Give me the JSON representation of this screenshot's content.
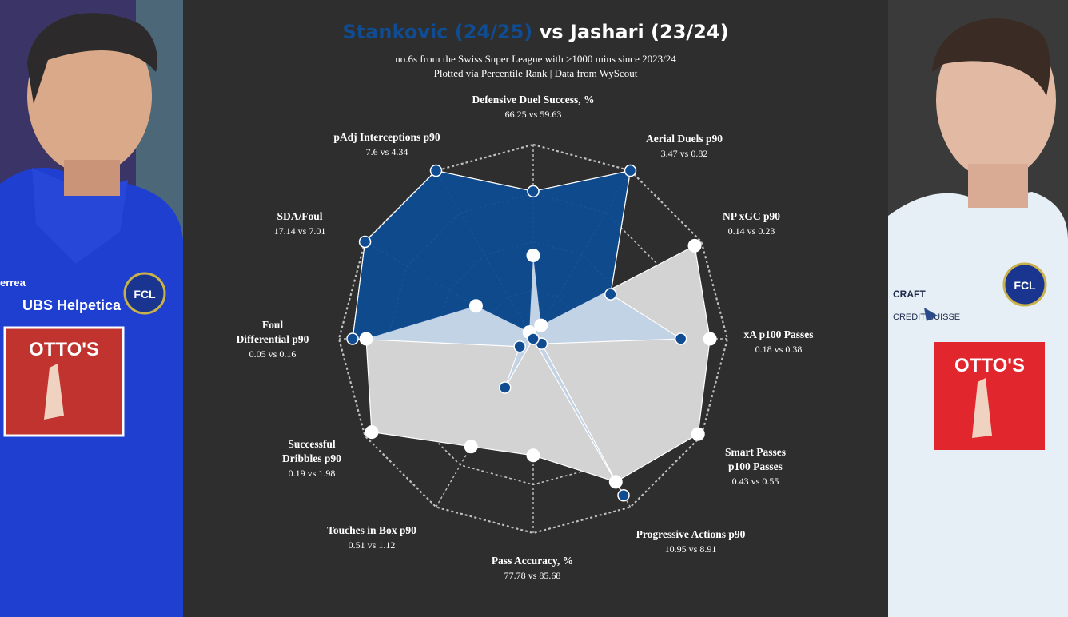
{
  "title": {
    "player1": "Stankovic (24/25)",
    "vs": "vs",
    "player2": "Jashari (23/24)"
  },
  "subtitle": {
    "line1": "no.6s from the Swiss Super League  with >1000 mins since 2023/24",
    "line2": "Plotted via Percentile Rank | Data from WyScout"
  },
  "colors": {
    "player1": "#0f4c92",
    "player2_fill": "#d3d3d3",
    "overlap": "#c3d3e6",
    "background": "#2e2e2e"
  },
  "photos": {
    "left": {
      "sponsor_top": "UBS\nHelpetica",
      "sponsor_main": "OTTO'S",
      "kit_brand": "errea",
      "badge": "FCL"
    },
    "right": {
      "sponsor_top": "CREDIT\nSUISSE",
      "sponsor_main": "OTTO'S",
      "kit_brand": "CRAFT",
      "badge": "FCL"
    }
  },
  "chart_data": {
    "type": "radar",
    "scale": "percentile rank",
    "range": [
      0,
      100
    ],
    "metrics": [
      {
        "name": "Defensive Duel Success, %",
        "values": "66.25 vs 59.63"
      },
      {
        "name": "Aerial Duels p90",
        "values": "3.47 vs 0.82"
      },
      {
        "name": "NP xGC p90",
        "values": "0.14 vs 0.23"
      },
      {
        "name": "xA p100 Passes",
        "values": "0.18 vs 0.38"
      },
      {
        "name": "Smart Passes\np100 Passes",
        "values": "0.43 vs 0.55"
      },
      {
        "name": "Progressive Actions p90",
        "values": "10.95 vs 8.91"
      },
      {
        "name": "Pass Accuracy, %",
        "values": "77.78 vs 85.68"
      },
      {
        "name": "Touches in Box p90",
        "values": "0.51 vs 1.12"
      },
      {
        "name": "Successful\nDribbles p90",
        "values": "0.19 vs 1.98"
      },
      {
        "name": "Foul\nDifferential p90",
        "values": "0.05 vs 0.16"
      },
      {
        "name": "SDA/Foul",
        "values": "17.14 vs 7.01"
      },
      {
        "name": "pAdj Interceptions p90",
        "values": "7.6 vs 4.34"
      }
    ],
    "series": [
      {
        "name": "Stankovic (24/25)",
        "color": "#0f4c92",
        "values": [
          76,
          100,
          46,
          76,
          5,
          93,
          0,
          29,
          8,
          93,
          100,
          100
        ]
      },
      {
        "name": "Jashari (23/24)",
        "color": "#ffffff",
        "values": [
          43,
          8,
          96,
          91,
          98,
          85,
          60,
          64,
          96,
          86,
          34,
          4
        ]
      }
    ]
  }
}
